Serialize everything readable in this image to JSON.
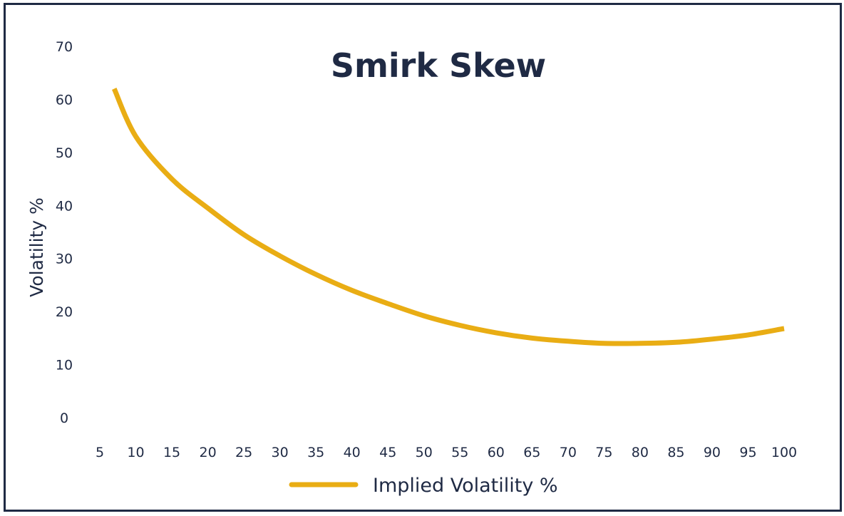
{
  "chart_data": {
    "type": "line",
    "title": "Smirk Skew",
    "xlabel": "",
    "ylabel": "Volatility %",
    "xlim": [
      5,
      100
    ],
    "ylim": [
      0,
      70
    ],
    "x_ticks": [
      "5",
      "10",
      "15",
      "20",
      "25",
      "30",
      "35",
      "40",
      "45",
      "50",
      "55",
      "60",
      "65",
      "70",
      "75",
      "80",
      "85",
      "90",
      "95",
      "100"
    ],
    "y_ticks": [
      "0",
      "10",
      "20",
      "30",
      "40",
      "50",
      "60",
      "70"
    ],
    "grid": false,
    "legend_position": "bottom",
    "series": [
      {
        "name": "Implied Volatility %",
        "color": "#e9ad14",
        "x": [
          7,
          10,
          15,
          20,
          25,
          30,
          35,
          40,
          45,
          50,
          55,
          60,
          65,
          70,
          75,
          80,
          85,
          90,
          95,
          100
        ],
        "y": [
          62,
          53,
          45,
          39.5,
          34.5,
          30.5,
          27,
          24,
          21.5,
          19.2,
          17.4,
          16,
          15,
          14.4,
          14,
          14,
          14.2,
          14.8,
          15.6,
          16.8
        ]
      }
    ]
  }
}
